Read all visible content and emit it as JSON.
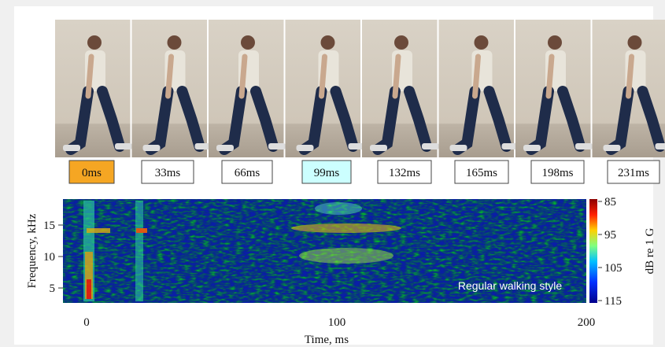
{
  "frames": [
    {
      "label": "0ms"
    },
    {
      "label": "33ms"
    },
    {
      "label": "66ms"
    },
    {
      "label": "99ms"
    },
    {
      "label": "132ms"
    },
    {
      "label": "165ms"
    },
    {
      "label": "198ms"
    },
    {
      "label": "231ms"
    }
  ],
  "spectrogram": {
    "y_axis_label": "Frequency, kHz",
    "y_ticks": [
      "5",
      "10",
      "15"
    ],
    "x_axis_label": "Time, ms",
    "x_ticks": [
      "0",
      "100",
      "200"
    ],
    "annotation": "Regular walking style",
    "colorbar": {
      "label": "dB re 1 G",
      "ticks": [
        "85",
        "95",
        "105",
        "115"
      ]
    }
  }
}
